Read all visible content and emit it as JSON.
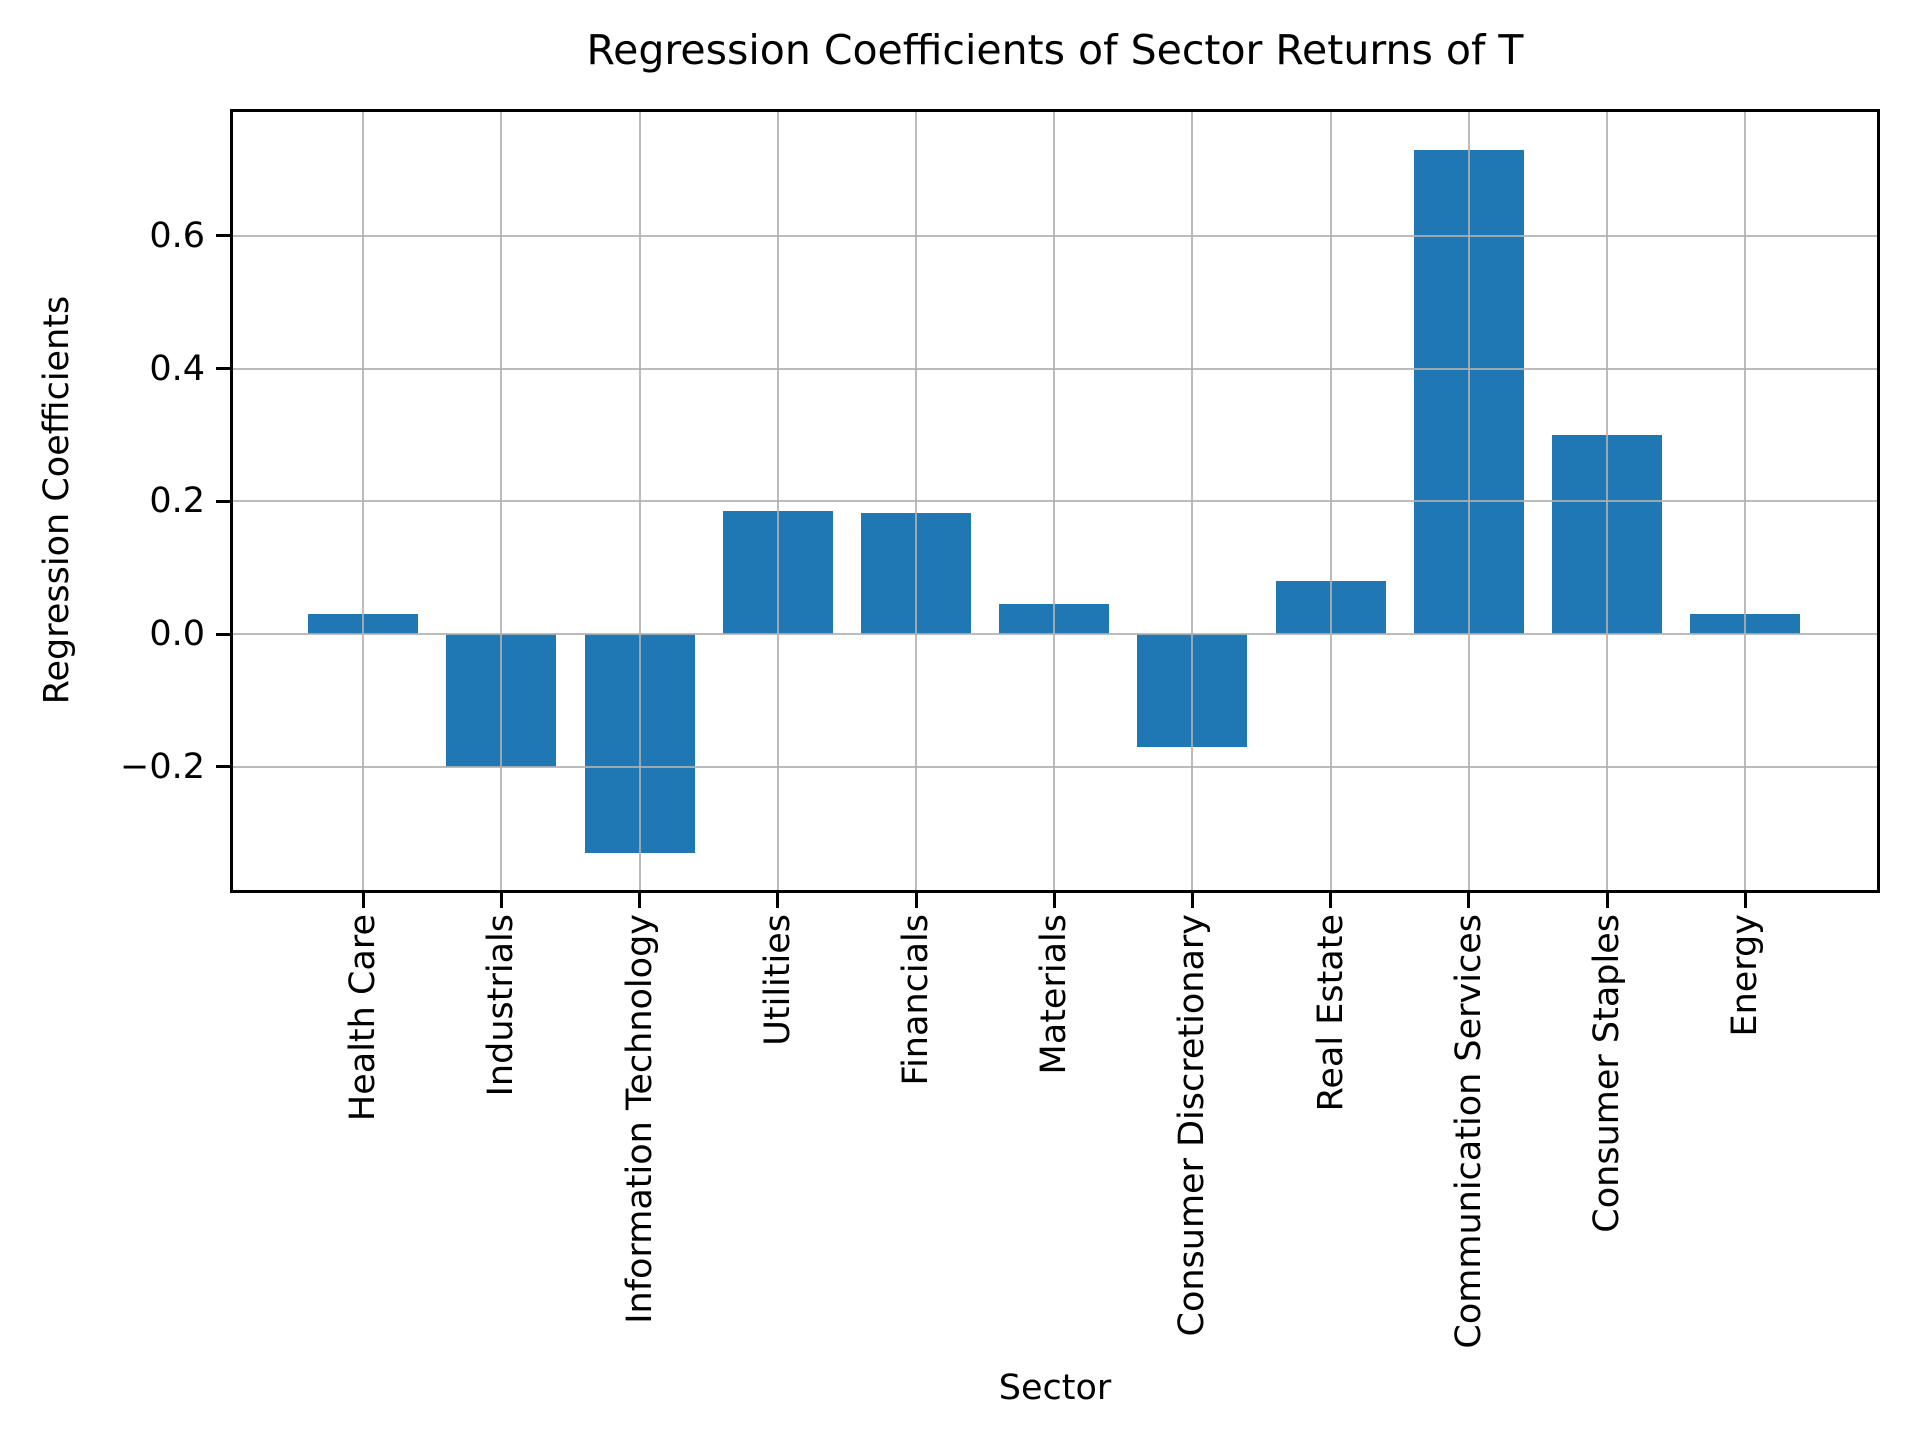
{
  "figure": {
    "title": "Regression Coefficients of Sector Returns of T",
    "xlabel": "Sector",
    "ylabel": "Regression Coefficients"
  },
  "chart_data": {
    "type": "bar",
    "title": "Regression Coefficients of Sector Returns of T",
    "xlabel": "Sector",
    "ylabel": "Regression Coefficients",
    "categories": [
      "Health Care",
      "Industrials",
      "Information Technology",
      "Utilities",
      "Financials",
      "Materials",
      "Consumer Discretionary",
      "Real Estate",
      "Communication Services",
      "Consumer Staples",
      "Energy"
    ],
    "values": [
      0.03,
      -0.2,
      -0.33,
      0.185,
      0.183,
      0.045,
      -0.17,
      0.08,
      0.73,
      0.3,
      0.03
    ],
    "ylim": [
      -0.386,
      0.787
    ],
    "yticks": {
      "labels": [
        "0.6",
        "0.4",
        "0.2",
        "0.0",
        "−0.2"
      ],
      "values": [
        0.6,
        0.4,
        0.2,
        0.0,
        -0.2
      ]
    },
    "xtick_rotation": 90,
    "grid": true,
    "legend": false,
    "bar_color": "#1f77b4",
    "grid_color": "#b0b0b0",
    "spine_color": "#000000",
    "text_color": "#000000",
    "background_color": "#ffffff"
  }
}
